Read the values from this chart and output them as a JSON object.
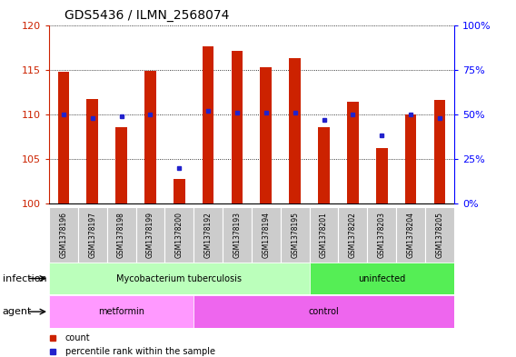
{
  "title": "GDS5436 / ILMN_2568074",
  "samples": [
    "GSM1378196",
    "GSM1378197",
    "GSM1378198",
    "GSM1378199",
    "GSM1378200",
    "GSM1378192",
    "GSM1378193",
    "GSM1378194",
    "GSM1378195",
    "GSM1378201",
    "GSM1378202",
    "GSM1378203",
    "GSM1378204",
    "GSM1378205"
  ],
  "counts": [
    114.8,
    111.7,
    108.5,
    114.9,
    102.7,
    117.6,
    117.1,
    115.3,
    116.3,
    108.6,
    111.4,
    106.2,
    110.0,
    111.6
  ],
  "percentile_ranks": [
    50,
    48,
    49,
    50,
    20,
    52,
    51,
    51,
    51,
    47,
    50,
    38,
    50,
    48
  ],
  "ylim_left": [
    100,
    120
  ],
  "ylim_right": [
    0,
    100
  ],
  "yticks_left": [
    100,
    105,
    110,
    115,
    120
  ],
  "yticks_right": [
    0,
    25,
    50,
    75,
    100
  ],
  "bar_color": "#cc2200",
  "dot_color": "#2222cc",
  "infection_groups": [
    {
      "label": "Mycobacterium tuberculosis",
      "start": 0,
      "end": 9,
      "color": "#bbffbb"
    },
    {
      "label": "uninfected",
      "start": 9,
      "end": 14,
      "color": "#55ee55"
    }
  ],
  "agent_groups": [
    {
      "label": "metformin",
      "start": 0,
      "end": 5,
      "color": "#ff99ff"
    },
    {
      "label": "control",
      "start": 5,
      "end": 14,
      "color": "#ee66ee"
    }
  ],
  "infection_label": "infection",
  "agent_label": "agent",
  "legend_count_label": "count",
  "legend_percentile_label": "percentile rank within the sample",
  "bg_color": "#ffffff",
  "sample_box_color": "#cccccc",
  "title_fontsize": 10,
  "bar_width": 0.4
}
